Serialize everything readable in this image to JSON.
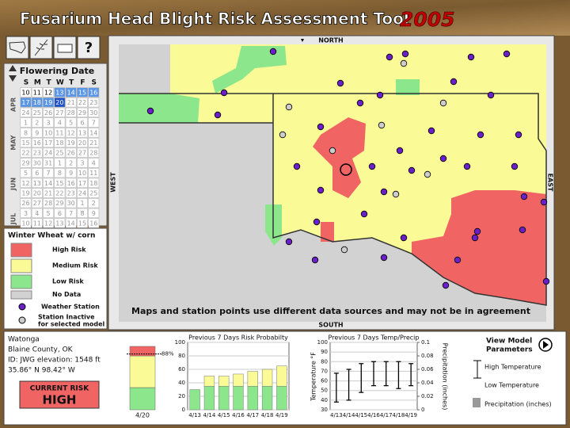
{
  "header": {
    "title": "Fusarium Head Blight Risk Assessment Tool",
    "year": "2005"
  },
  "toolbar": {
    "help": "?"
  },
  "calendar": {
    "title": "Flowering Date",
    "weekdays": [
      "S",
      "M",
      "T",
      "W",
      "T",
      "F",
      "S"
    ],
    "months": [
      "APR",
      "MAY",
      "JUN",
      "JUL"
    ],
    "rows": [
      [
        "10",
        "11",
        "12",
        "13",
        "14",
        "15",
        "16"
      ],
      [
        "17",
        "18",
        "19",
        "20",
        "21",
        "22",
        "23"
      ],
      [
        "24",
        "25",
        "26",
        "27",
        "28",
        "29",
        "30"
      ],
      [
        "1",
        "2",
        "3",
        "4",
        "5",
        "6",
        "7"
      ],
      [
        "8",
        "9",
        "10",
        "11",
        "12",
        "13",
        "14"
      ],
      [
        "15",
        "16",
        "17",
        "18",
        "19",
        "20",
        "21"
      ],
      [
        "22",
        "23",
        "24",
        "25",
        "26",
        "27",
        "28"
      ],
      [
        "29",
        "30",
        "31",
        "1",
        "2",
        "3",
        "4"
      ],
      [
        "5",
        "6",
        "7",
        "8",
        "9",
        "10",
        "11"
      ],
      [
        "12",
        "13",
        "14",
        "15",
        "16",
        "17",
        "18"
      ],
      [
        "19",
        "20",
        "21",
        "22",
        "23",
        "24",
        "25"
      ],
      [
        "26",
        "27",
        "28",
        "29",
        "30",
        "1",
        "2"
      ],
      [
        "3",
        "4",
        "5",
        "6",
        "7",
        "8",
        "9"
      ],
      [
        "10",
        "11",
        "12",
        "13",
        "14",
        "15",
        "16"
      ]
    ]
  },
  "legend": {
    "title": "Winter Wheat w/ corn",
    "items": [
      {
        "label": "High Risk",
        "color": "#f06464"
      },
      {
        "label": "Medium Risk",
        "color": "#fafa96"
      },
      {
        "label": "Low Risk",
        "color": "#8ce68c"
      },
      {
        "label": "No Data",
        "color": "#d2d2d2"
      }
    ],
    "station": "Weather Station",
    "inactive": [
      "Station Inactive",
      "for selected model"
    ]
  },
  "map": {
    "north": "NORTH",
    "south": "SOUTH",
    "west": "WEST",
    "east": "EAST",
    "note": "Maps and station points use different data sources and may not be in agreement"
  },
  "station": {
    "name": "Watonga",
    "county": "Blaine County, OK",
    "id": "ID: JWG    elevation: 1548 ft",
    "coords": "35.86° N    98.42° W"
  },
  "current_risk": {
    "label": "CURRENT RISK",
    "level": "HIGH"
  },
  "model_button": [
    "View Model",
    "Parameters"
  ],
  "chart_data": [
    {
      "type": "gauge",
      "categories": [
        "4/20"
      ],
      "values": [
        88
      ],
      "value_labels": [
        "88%"
      ],
      "ylim": [
        0,
        100
      ]
    },
    {
      "type": "bar",
      "title": "Previous 7 Days Risk Probabilty",
      "categories": [
        "4/13",
        "4/14",
        "4/15",
        "4/16",
        "4/17",
        "4/18",
        "4/19"
      ],
      "series": [
        {
          "color": "#8ce68c",
          "values": [
            30,
            35,
            35,
            35,
            35,
            35,
            35
          ]
        },
        {
          "color": "#fafa96",
          "values": [
            0,
            15,
            15,
            18,
            22,
            25,
            30
          ]
        }
      ],
      "ylim": [
        0,
        100
      ],
      "yticks": [
        0,
        20,
        40,
        60,
        80,
        100
      ]
    },
    {
      "type": "errorbar",
      "title": "Previous 7 Days Temp/Precip",
      "ylabel": "Temperature °F",
      "y2label": "Precipitation (inches)",
      "categories": [
        "4/13",
        "4/14",
        "4/15",
        "4/16",
        "4/17",
        "4/18",
        "4/19"
      ],
      "series": [
        {
          "name": "High Temperature",
          "values": [
            68,
            72,
            78,
            80,
            80,
            80,
            78
          ]
        },
        {
          "name": "Low Temperature",
          "values": [
            38,
            40,
            48,
            55,
            55,
            52,
            55
          ]
        },
        {
          "name": "Precipitation (inches)",
          "axis": "y2",
          "color": "#999999",
          "values": [
            0,
            0,
            0,
            0,
            0,
            0,
            0
          ]
        }
      ],
      "ylim": [
        30,
        100
      ],
      "yticks": [
        30,
        40,
        50,
        60,
        70,
        80,
        90,
        100
      ],
      "y2lim": [
        0,
        0.1
      ],
      "y2ticks": [
        0,
        0.02,
        0.04,
        0.06,
        0.08,
        0.1
      ]
    }
  ]
}
